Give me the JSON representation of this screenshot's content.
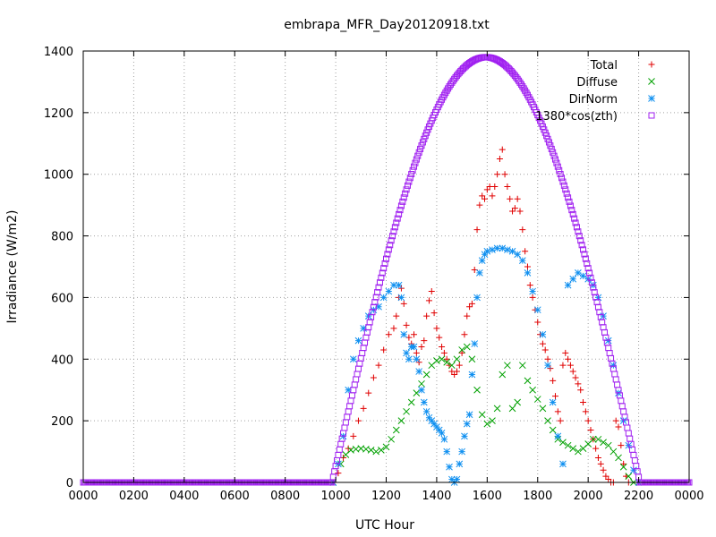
{
  "chart_data": {
    "type": "scatter",
    "title": "embrapa_MFR_Day20120918.txt",
    "xlabel": "UTC Hour",
    "ylabel": "Irradiance (W/m2)",
    "xlim": [
      0,
      24
    ],
    "ylim": [
      0,
      1400
    ],
    "grid": true,
    "legend_position": "top-right",
    "x_ticks": [
      {
        "x": 0,
        "label": "0000"
      },
      {
        "x": 2,
        "label": "0200"
      },
      {
        "x": 4,
        "label": "0400"
      },
      {
        "x": 6,
        "label": "0600"
      },
      {
        "x": 8,
        "label": "0800"
      },
      {
        "x": 10,
        "label": "1000"
      },
      {
        "x": 12,
        "label": "1200"
      },
      {
        "x": 14,
        "label": "1400"
      },
      {
        "x": 16,
        "label": "1600"
      },
      {
        "x": 18,
        "label": "1800"
      },
      {
        "x": 20,
        "label": "2000"
      },
      {
        "x": 22,
        "label": "2200"
      },
      {
        "x": 24,
        "label": "0000"
      }
    ],
    "y_ticks": [
      {
        "y": 0,
        "label": "0"
      },
      {
        "y": 200,
        "label": "200"
      },
      {
        "y": 400,
        "label": "400"
      },
      {
        "y": 600,
        "label": "600"
      },
      {
        "y": 800,
        "label": "800"
      },
      {
        "y": 1000,
        "label": "1000"
      },
      {
        "y": 1200,
        "label": "1200"
      },
      {
        "y": 1400,
        "label": "1400"
      }
    ],
    "series": [
      {
        "name": "Total",
        "marker": "plus",
        "color": "#e00000",
        "points": [
          [
            9.9,
            0
          ],
          [
            10.1,
            30
          ],
          [
            10.3,
            80
          ],
          [
            10.5,
            110
          ],
          [
            10.7,
            150
          ],
          [
            10.9,
            200
          ],
          [
            11.1,
            240
          ],
          [
            11.3,
            290
          ],
          [
            11.5,
            340
          ],
          [
            11.7,
            380
          ],
          [
            11.9,
            430
          ],
          [
            12.1,
            480
          ],
          [
            12.3,
            500
          ],
          [
            12.4,
            540
          ],
          [
            12.5,
            600
          ],
          [
            12.6,
            630
          ],
          [
            12.7,
            580
          ],
          [
            12.8,
            510
          ],
          [
            12.9,
            470
          ],
          [
            13.0,
            450
          ],
          [
            13.1,
            480
          ],
          [
            13.2,
            420
          ],
          [
            13.3,
            390
          ],
          [
            13.4,
            440
          ],
          [
            13.5,
            460
          ],
          [
            13.6,
            540
          ],
          [
            13.7,
            590
          ],
          [
            13.8,
            620
          ],
          [
            13.9,
            550
          ],
          [
            14.0,
            500
          ],
          [
            14.1,
            470
          ],
          [
            14.2,
            440
          ],
          [
            14.3,
            420
          ],
          [
            14.4,
            400
          ],
          [
            14.5,
            380
          ],
          [
            14.6,
            360
          ],
          [
            14.7,
            350
          ],
          [
            14.8,
            360
          ],
          [
            14.9,
            380
          ],
          [
            15.0,
            420
          ],
          [
            15.1,
            480
          ],
          [
            15.2,
            540
          ],
          [
            15.3,
            570
          ],
          [
            15.4,
            580
          ],
          [
            15.5,
            690
          ],
          [
            15.6,
            820
          ],
          [
            15.7,
            900
          ],
          [
            15.8,
            930
          ],
          [
            15.9,
            920
          ],
          [
            16.0,
            950
          ],
          [
            16.1,
            960
          ],
          [
            16.2,
            930
          ],
          [
            16.3,
            960
          ],
          [
            16.4,
            1000
          ],
          [
            16.5,
            1050
          ],
          [
            16.6,
            1080
          ],
          [
            16.7,
            1000
          ],
          [
            16.8,
            960
          ],
          [
            16.9,
            920
          ],
          [
            17.0,
            880
          ],
          [
            17.1,
            890
          ],
          [
            17.2,
            920
          ],
          [
            17.3,
            880
          ],
          [
            17.4,
            820
          ],
          [
            17.5,
            750
          ],
          [
            17.6,
            700
          ],
          [
            17.7,
            640
          ],
          [
            17.8,
            600
          ],
          [
            17.9,
            560
          ],
          [
            18.0,
            520
          ],
          [
            18.1,
            480
          ],
          [
            18.2,
            450
          ],
          [
            18.3,
            430
          ],
          [
            18.4,
            400
          ],
          [
            18.5,
            370
          ],
          [
            18.6,
            330
          ],
          [
            18.7,
            280
          ],
          [
            18.8,
            230
          ],
          [
            18.9,
            200
          ],
          [
            19.0,
            380
          ],
          [
            19.1,
            420
          ],
          [
            19.2,
            400
          ],
          [
            19.3,
            380
          ],
          [
            19.4,
            360
          ],
          [
            19.5,
            340
          ],
          [
            19.6,
            320
          ],
          [
            19.7,
            300
          ],
          [
            19.8,
            260
          ],
          [
            19.9,
            230
          ],
          [
            20.0,
            200
          ],
          [
            20.1,
            170
          ],
          [
            20.2,
            140
          ],
          [
            20.3,
            110
          ],
          [
            20.4,
            80
          ],
          [
            20.5,
            60
          ],
          [
            20.6,
            40
          ],
          [
            20.7,
            20
          ],
          [
            20.8,
            10
          ],
          [
            20.9,
            0
          ],
          [
            21.0,
            0
          ],
          [
            21.1,
            200
          ],
          [
            21.2,
            180
          ],
          [
            21.3,
            120
          ],
          [
            21.4,
            60
          ],
          [
            21.5,
            20
          ],
          [
            21.6,
            0
          ]
        ]
      },
      {
        "name": "Diffuse",
        "marker": "cross",
        "color": "#00a000",
        "points": [
          [
            9.9,
            0
          ],
          [
            10.2,
            60
          ],
          [
            10.4,
            90
          ],
          [
            10.6,
            105
          ],
          [
            10.8,
            108
          ],
          [
            11.0,
            110
          ],
          [
            11.2,
            108
          ],
          [
            11.4,
            105
          ],
          [
            11.6,
            100
          ],
          [
            11.8,
            105
          ],
          [
            12.0,
            115
          ],
          [
            12.2,
            140
          ],
          [
            12.4,
            170
          ],
          [
            12.6,
            200
          ],
          [
            12.8,
            230
          ],
          [
            13.0,
            260
          ],
          [
            13.2,
            290
          ],
          [
            13.4,
            320
          ],
          [
            13.6,
            350
          ],
          [
            13.8,
            380
          ],
          [
            14.0,
            395
          ],
          [
            14.2,
            400
          ],
          [
            14.4,
            390
          ],
          [
            14.6,
            380
          ],
          [
            14.8,
            400
          ],
          [
            15.0,
            430
          ],
          [
            15.2,
            440
          ],
          [
            15.4,
            400
          ],
          [
            15.6,
            300
          ],
          [
            15.8,
            220
          ],
          [
            16.0,
            190
          ],
          [
            16.2,
            200
          ],
          [
            16.4,
            240
          ],
          [
            16.6,
            350
          ],
          [
            16.8,
            380
          ],
          [
            17.0,
            240
          ],
          [
            17.2,
            260
          ],
          [
            17.4,
            380
          ],
          [
            17.6,
            330
          ],
          [
            17.8,
            300
          ],
          [
            18.0,
            270
          ],
          [
            18.2,
            240
          ],
          [
            18.4,
            200
          ],
          [
            18.6,
            170
          ],
          [
            18.8,
            140
          ],
          [
            19.0,
            130
          ],
          [
            19.2,
            120
          ],
          [
            19.4,
            110
          ],
          [
            19.6,
            100
          ],
          [
            19.8,
            110
          ],
          [
            20.0,
            125
          ],
          [
            20.2,
            140
          ],
          [
            20.4,
            140
          ],
          [
            20.6,
            130
          ],
          [
            20.8,
            120
          ],
          [
            21.0,
            100
          ],
          [
            21.2,
            80
          ],
          [
            21.4,
            50
          ],
          [
            21.6,
            20
          ],
          [
            21.8,
            0
          ]
        ]
      },
      {
        "name": "DirNorm",
        "marker": "star",
        "color": "#1090f0",
        "points": [
          [
            9.9,
            0
          ],
          [
            10.1,
            60
          ],
          [
            10.3,
            150
          ],
          [
            10.5,
            300
          ],
          [
            10.7,
            400
          ],
          [
            10.9,
            460
          ],
          [
            11.1,
            500
          ],
          [
            11.3,
            540
          ],
          [
            11.5,
            560
          ],
          [
            11.7,
            570
          ],
          [
            11.9,
            600
          ],
          [
            12.1,
            620
          ],
          [
            12.3,
            640
          ],
          [
            12.5,
            640
          ],
          [
            12.6,
            600
          ],
          [
            12.7,
            480
          ],
          [
            12.8,
            420
          ],
          [
            12.9,
            400
          ],
          [
            13.0,
            440
          ],
          [
            13.1,
            440
          ],
          [
            13.2,
            400
          ],
          [
            13.3,
            360
          ],
          [
            13.4,
            300
          ],
          [
            13.5,
            260
          ],
          [
            13.6,
            230
          ],
          [
            13.7,
            210
          ],
          [
            13.8,
            200
          ],
          [
            13.9,
            190
          ],
          [
            14.0,
            180
          ],
          [
            14.1,
            170
          ],
          [
            14.2,
            160
          ],
          [
            14.3,
            140
          ],
          [
            14.4,
            100
          ],
          [
            14.5,
            50
          ],
          [
            14.6,
            10
          ],
          [
            14.7,
            0
          ],
          [
            14.8,
            10
          ],
          [
            14.9,
            60
          ],
          [
            15.0,
            100
          ],
          [
            15.1,
            150
          ],
          [
            15.2,
            190
          ],
          [
            15.3,
            220
          ],
          [
            15.4,
            350
          ],
          [
            15.5,
            450
          ],
          [
            15.6,
            600
          ],
          [
            15.7,
            680
          ],
          [
            15.8,
            720
          ],
          [
            15.9,
            740
          ],
          [
            16.0,
            750
          ],
          [
            16.2,
            755
          ],
          [
            16.4,
            760
          ],
          [
            16.6,
            760
          ],
          [
            16.8,
            755
          ],
          [
            17.0,
            750
          ],
          [
            17.2,
            740
          ],
          [
            17.4,
            720
          ],
          [
            17.6,
            680
          ],
          [
            17.8,
            620
          ],
          [
            18.0,
            560
          ],
          [
            18.2,
            480
          ],
          [
            18.4,
            380
          ],
          [
            18.6,
            260
          ],
          [
            18.8,
            150
          ],
          [
            19.0,
            60
          ],
          [
            19.2,
            640
          ],
          [
            19.4,
            660
          ],
          [
            19.6,
            680
          ],
          [
            19.8,
            670
          ],
          [
            20.0,
            660
          ],
          [
            20.2,
            640
          ],
          [
            20.4,
            600
          ],
          [
            20.6,
            540
          ],
          [
            20.8,
            460
          ],
          [
            21.0,
            380
          ],
          [
            21.2,
            290
          ],
          [
            21.4,
            200
          ],
          [
            21.6,
            120
          ],
          [
            21.8,
            40
          ],
          [
            22.0,
            0
          ]
        ]
      },
      {
        "name": "1380*cos(zth)",
        "marker": "square",
        "color": "#a020f0",
        "peak": 1380,
        "peak_hour": 15.95,
        "sunrise_hour": 9.85,
        "sunset_hour": 22.05
      }
    ]
  }
}
